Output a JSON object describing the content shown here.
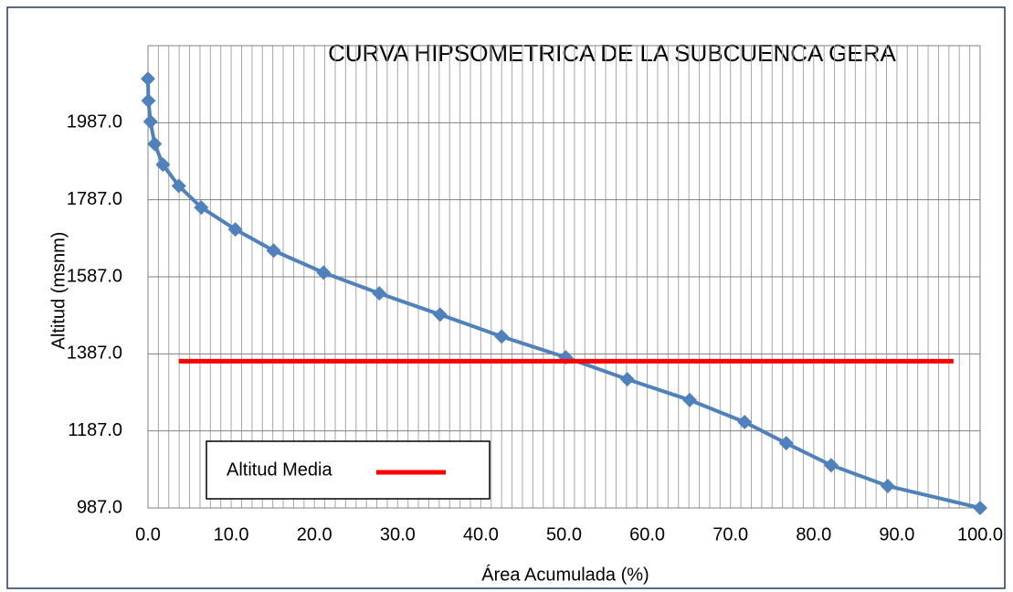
{
  "chart_data": {
    "type": "line",
    "title": "CURVA HIPSOMETRICA DE LA SUBCUENCA GERA",
    "xlabel": "Área Acumulada (%)",
    "ylabel": "Altitud (msnm)",
    "xlim": [
      0,
      100
    ],
    "ylim": [
      987,
      2187
    ],
    "xticks": [
      {
        "value": 0,
        "label": "0.0"
      },
      {
        "value": 10,
        "label": "10.0"
      },
      {
        "value": 20,
        "label": "20.0"
      },
      {
        "value": 30,
        "label": "30.0"
      },
      {
        "value": 40,
        "label": "40.0"
      },
      {
        "value": 50,
        "label": "50.0"
      },
      {
        "value": 60,
        "label": "60.0"
      },
      {
        "value": 70,
        "label": "70.0"
      },
      {
        "value": 80,
        "label": "80.0"
      },
      {
        "value": 90,
        "label": "90.0"
      },
      {
        "value": 100,
        "label": "100.0"
      }
    ],
    "yticks": [
      {
        "value": 987,
        "label": "987.0"
      },
      {
        "value": 1187,
        "label": "1187.0"
      },
      {
        "value": 1387,
        "label": "1387.0"
      },
      {
        "value": 1587,
        "label": "1587.0"
      },
      {
        "value": 1787,
        "label": "1787.0"
      },
      {
        "value": 1987,
        "label": "1987.0"
      }
    ],
    "grid": true,
    "series": [
      {
        "color": "#4f81bd",
        "marker": "diamond",
        "x": [
          0,
          0.05,
          0.3,
          0.8,
          1.8,
          3.7,
          6.4,
          10.5,
          15.1,
          21.1,
          27.8,
          35.1,
          42.5,
          50.2,
          57.6,
          65.1,
          71.7,
          76.7,
          82.1,
          88.9,
          100
        ],
        "values": [
          2101,
          2044,
          1990,
          1932,
          1878,
          1823,
          1767,
          1710,
          1655,
          1598,
          1544,
          1489,
          1432,
          1378,
          1321,
          1267,
          1210,
          1155,
          1098,
          1044,
          987
        ]
      },
      {
        "name": "Altitud Media",
        "color": "#ff0000",
        "x": [
          3.7,
          96.8
        ],
        "values": [
          1368,
          1368
        ]
      }
    ],
    "legend": "lower-left"
  }
}
